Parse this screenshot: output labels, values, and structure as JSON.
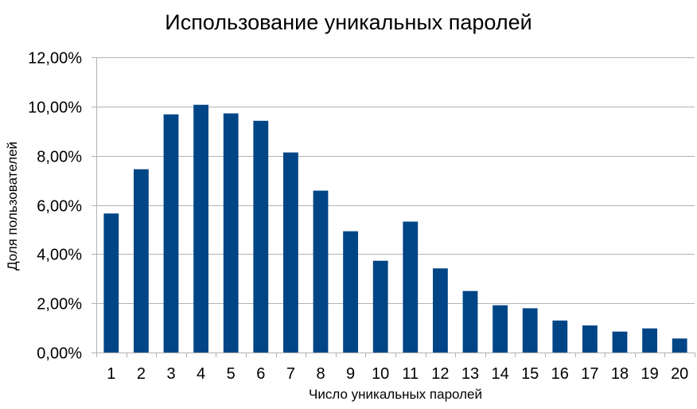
{
  "chart_data": {
    "type": "bar",
    "title": "Использование уникальных паролей",
    "xlabel": "Число уникальных паролей",
    "ylabel": "Доля пользователей",
    "categories": [
      "1",
      "2",
      "3",
      "4",
      "5",
      "6",
      "7",
      "8",
      "9",
      "10",
      "11",
      "12",
      "13",
      "14",
      "15",
      "16",
      "17",
      "18",
      "19",
      "20"
    ],
    "values": [
      5.65,
      7.45,
      9.68,
      10.07,
      9.72,
      9.42,
      8.13,
      6.58,
      4.93,
      3.73,
      5.32,
      3.42,
      2.5,
      1.92,
      1.8,
      1.3,
      1.1,
      0.85,
      0.98,
      0.57
    ],
    "ylim": [
      0,
      12
    ],
    "yticks": [
      0,
      2,
      4,
      6,
      8,
      10,
      12
    ],
    "ytick_labels": [
      "0,00%",
      "2,00%",
      "4,00%",
      "6,00%",
      "8,00%",
      "10,00%",
      "12,00%"
    ],
    "grid": true,
    "bar_color": "#004586",
    "legend": "none"
  }
}
